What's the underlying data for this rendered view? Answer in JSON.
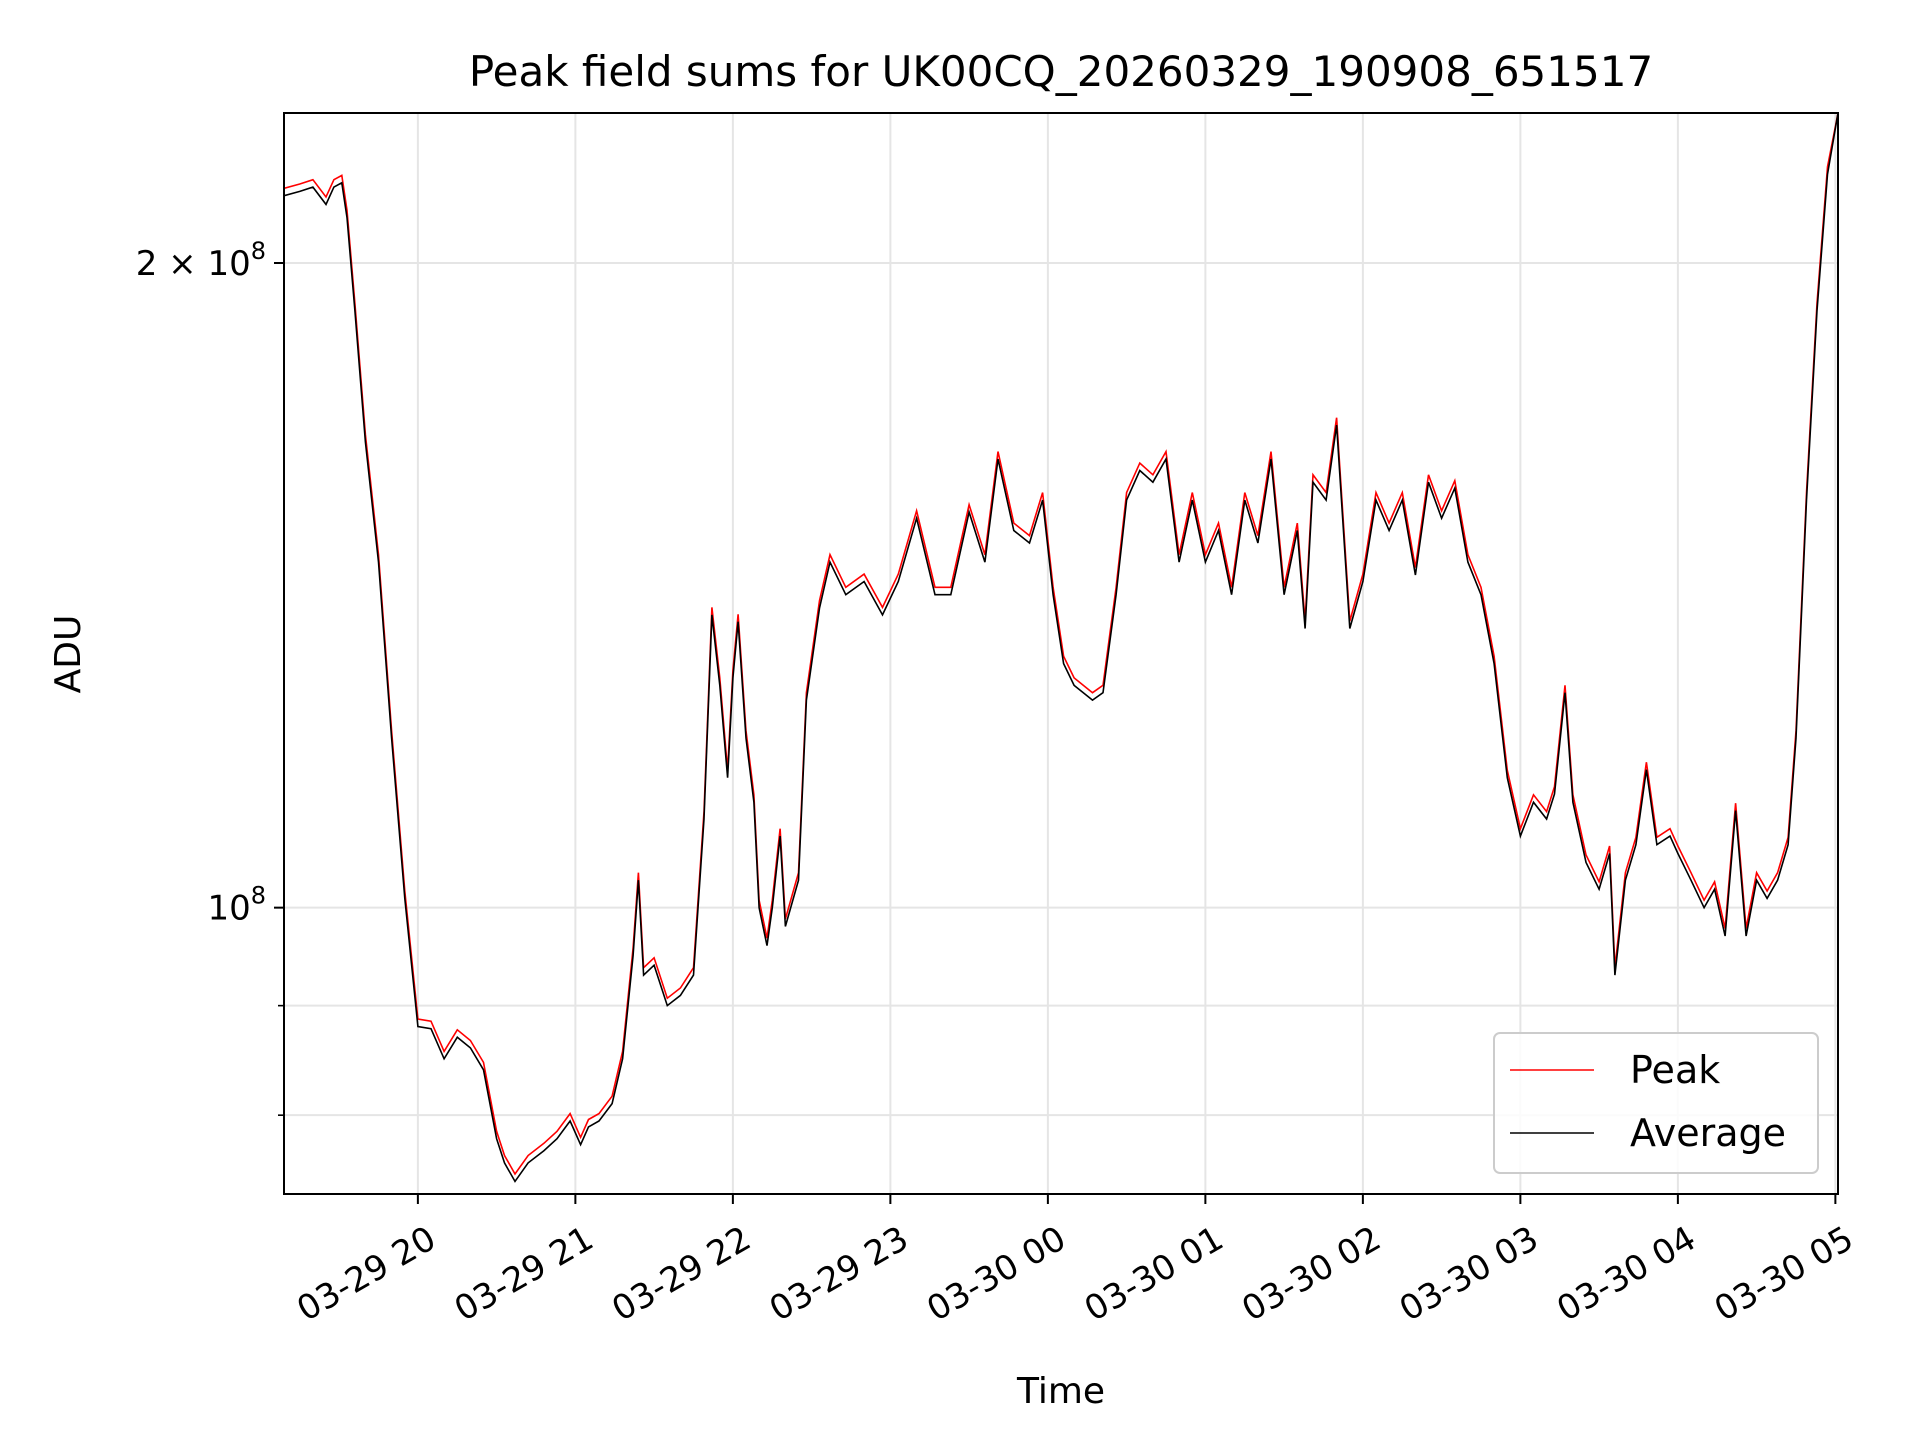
{
  "chart_data": {
    "type": "line",
    "title": "Peak field sums for UK00CQ_20260329_190908_651517",
    "xlabel": "Time",
    "ylabel": "ADU",
    "yscale": "log",
    "ylim": [
      73500000.0,
      235000000.0
    ],
    "xlim": [
      "2026-03-29 19:09",
      "2026-03-30 05:01"
    ],
    "grid": true,
    "legend_position": "lower right",
    "x_ticks": [
      "03-29 20",
      "03-29 21",
      "03-29 22",
      "03-29 23",
      "03-30 00",
      "03-30 01",
      "03-30 02",
      "03-30 03",
      "03-30 04",
      "03-30 05"
    ],
    "y_ticks": [
      {
        "value": 100000000.0,
        "mantissa": "",
        "base": "10",
        "exp": "8"
      },
      {
        "value": 200000000.0,
        "mantissa": "2 × ",
        "base": "10",
        "exp": "8"
      }
    ],
    "y_minor_ticks": [
      80000000.0,
      90000000.0
    ],
    "series": [
      {
        "name": "Peak",
        "color": "#ff0000"
      },
      {
        "name": "Average",
        "color": "#000000"
      }
    ],
    "x": [
      "2026-03-29 19:09",
      "2026-03-29 19:15",
      "2026-03-29 19:20",
      "2026-03-29 19:25",
      "2026-03-29 19:28",
      "2026-03-29 19:31",
      "2026-03-29 19:33",
      "2026-03-29 19:36",
      "2026-03-29 19:40",
      "2026-03-29 19:45",
      "2026-03-29 19:50",
      "2026-03-29 19:55",
      "2026-03-29 20:00",
      "2026-03-29 20:05",
      "2026-03-29 20:10",
      "2026-03-29 20:15",
      "2026-03-29 20:20",
      "2026-03-29 20:25",
      "2026-03-29 20:30",
      "2026-03-29 20:33",
      "2026-03-29 20:37",
      "2026-03-29 20:42",
      "2026-03-29 20:48",
      "2026-03-29 20:53",
      "2026-03-29 20:58",
      "2026-03-29 21:02",
      "2026-03-29 21:05",
      "2026-03-29 21:09",
      "2026-03-29 21:14",
      "2026-03-29 21:18",
      "2026-03-29 21:22",
      "2026-03-29 21:24",
      "2026-03-29 21:26",
      "2026-03-29 21:30",
      "2026-03-29 21:35",
      "2026-03-29 21:40",
      "2026-03-29 21:45",
      "2026-03-29 21:49",
      "2026-03-29 21:52",
      "2026-03-29 21:55",
      "2026-03-29 21:58",
      "2026-03-29 22:00",
      "2026-03-29 22:02",
      "2026-03-29 22:05",
      "2026-03-29 22:08",
      "2026-03-29 22:10",
      "2026-03-29 22:13",
      "2026-03-29 22:15",
      "2026-03-29 22:18",
      "2026-03-29 22:20",
      "2026-03-29 22:25",
      "2026-03-29 22:28",
      "2026-03-29 22:30",
      "2026-03-29 22:33",
      "2026-03-29 22:37",
      "2026-03-29 22:43",
      "2026-03-29 22:50",
      "2026-03-29 22:57",
      "2026-03-29 23:03",
      "2026-03-29 23:10",
      "2026-03-29 23:17",
      "2026-03-29 23:23",
      "2026-03-29 23:30",
      "2026-03-29 23:36",
      "2026-03-29 23:41",
      "2026-03-29 23:47",
      "2026-03-29 23:53",
      "2026-03-29 23:58",
      "2026-03-30 00:02",
      "2026-03-30 00:06",
      "2026-03-30 00:10",
      "2026-03-30 00:17",
      "2026-03-30 00:21",
      "2026-03-30 00:26",
      "2026-03-30 00:30",
      "2026-03-30 00:35",
      "2026-03-30 00:40",
      "2026-03-30 00:45",
      "2026-03-30 00:50",
      "2026-03-30 00:55",
      "2026-03-30 01:00",
      "2026-03-30 01:05",
      "2026-03-30 01:10",
      "2026-03-30 01:15",
      "2026-03-30 01:20",
      "2026-03-30 01:25",
      "2026-03-30 01:30",
      "2026-03-30 01:35",
      "2026-03-30 01:38",
      "2026-03-30 01:41",
      "2026-03-30 01:46",
      "2026-03-30 01:50",
      "2026-03-30 01:55",
      "2026-03-30 02:00",
      "2026-03-30 02:05",
      "2026-03-30 02:10",
      "2026-03-30 02:15",
      "2026-03-30 02:20",
      "2026-03-30 02:25",
      "2026-03-30 02:30",
      "2026-03-30 02:35",
      "2026-03-30 02:40",
      "2026-03-30 02:45",
      "2026-03-30 02:50",
      "2026-03-30 02:55",
      "2026-03-30 03:00",
      "2026-03-30 03:05",
      "2026-03-30 03:10",
      "2026-03-30 03:13",
      "2026-03-30 03:17",
      "2026-03-30 03:20",
      "2026-03-30 03:25",
      "2026-03-30 03:30",
      "2026-03-30 03:34",
      "2026-03-30 03:36",
      "2026-03-30 03:40",
      "2026-03-30 03:44",
      "2026-03-30 03:48",
      "2026-03-30 03:52",
      "2026-03-30 03:57",
      "2026-03-30 04:00",
      "2026-03-30 04:05",
      "2026-03-30 04:10",
      "2026-03-30 04:14",
      "2026-03-30 04:18",
      "2026-03-30 04:22",
      "2026-03-30 04:26",
      "2026-03-30 04:30",
      "2026-03-30 04:34",
      "2026-03-30 04:38",
      "2026-03-30 04:42",
      "2026-03-30 04:45",
      "2026-03-30 04:49",
      "2026-03-30 04:53",
      "2026-03-30 04:57",
      "2026-03-30 05:01"
    ],
    "y": [
      215000000.0,
      216000000.0,
      217000000.0,
      213000000.0,
      217000000.0,
      218000000.0,
      210000000.0,
      190000000.0,
      165000000.0,
      145000000.0,
      120000000.0,
      101000000.0,
      88000000.0,
      87800000.0,
      85000000.0,
      87000000.0,
      86000000.0,
      84000000.0,
      78000000.0,
      76000000.0,
      74500000.0,
      76000000.0,
      77000000.0,
      78000000.0,
      79500000.0,
      77500000.0,
      79000000.0,
      79500000.0,
      81000000.0,
      85000000.0,
      95000000.0,
      103000000.0,
      93000000.0,
      94000000.0,
      90000000.0,
      91000000.0,
      93000000.0,
      110000000.0,
      137000000.0,
      127000000.0,
      115000000.0,
      128000000.0,
      136000000.0,
      120000000.0,
      112000000.0,
      100000000.0,
      96000000.0,
      100000000.0,
      108000000.0,
      98000000.0,
      103000000.0,
      125000000.0,
      130000000.0,
      138000000.0,
      145000000.0,
      140000000.0,
      142000000.0,
      137000000.0,
      142000000.0,
      152000000.0,
      140000000.0,
      140000000.0,
      153000000.0,
      145000000.0,
      162000000.0,
      150000000.0,
      148000000.0,
      155000000.0,
      140000000.0,
      130000000.0,
      127000000.0,
      125000000.0,
      126000000.0,
      140000000.0,
      155000000.0,
      160000000.0,
      158000000.0,
      162000000.0,
      145000000.0,
      155000000.0,
      145000000.0,
      150000000.0,
      140000000.0,
      155000000.0,
      148000000.0,
      162000000.0,
      140000000.0,
      150000000.0,
      135000000.0,
      158000000.0,
      155000000.0,
      168000000.0,
      135000000.0,
      142000000.0,
      155000000.0,
      150000000.0,
      155000000.0,
      143000000.0,
      158000000.0,
      152000000.0,
      157000000.0,
      145000000.0,
      140000000.0,
      130000000.0,
      115000000.0,
      108000000.0,
      112000000.0,
      110000000.0,
      113000000.0,
      126000000.0,
      112000000.0,
      105000000.0,
      102000000.0,
      106000000.0,
      93000000.0,
      103000000.0,
      107000000.0,
      116000000.0,
      107000000.0,
      108000000.0,
      106000000.0,
      103000000.0,
      100000000.0,
      102000000.0,
      97000000.0,
      111000000.0,
      97000000.0,
      103000000.0,
      101000000.0,
      103000000.0,
      107000000.0,
      120000000.0,
      155000000.0,
      190000000.0,
      220000000.0,
      235000000.0
    ],
    "legend": [
      "Peak",
      "Average"
    ]
  }
}
